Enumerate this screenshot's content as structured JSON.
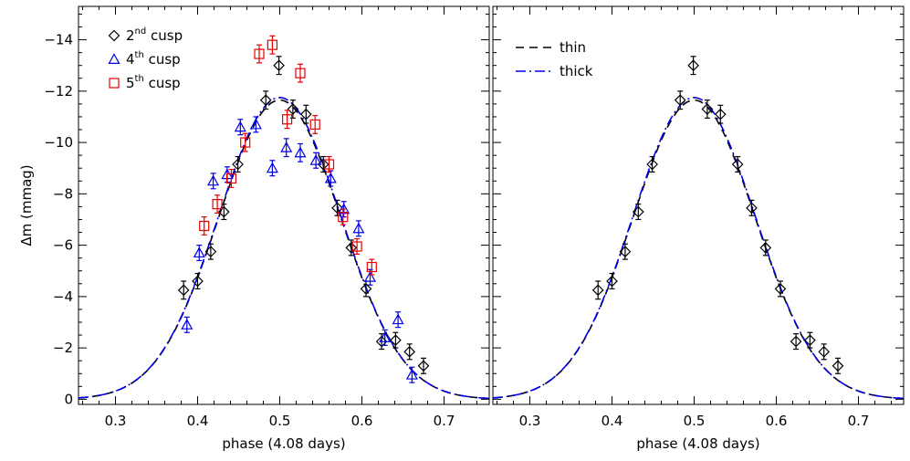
{
  "chart_data": [
    {
      "type": "scatter",
      "panel": "left",
      "xlabel": "phase (4.08 days)",
      "ylabel": "Δm (mmag)",
      "xlim": [
        0.255,
        0.755
      ],
      "ylim": [
        0.2,
        -15.3
      ],
      "x_ticks": [
        0.3,
        0.4,
        0.5,
        0.6,
        0.7
      ],
      "x_tick_labels": [
        "0.3",
        "0.4",
        "0.5",
        "0.6",
        "0.7"
      ],
      "y_ticks": [
        0,
        -2,
        -4,
        -6,
        -8,
        -10,
        -12,
        -14
      ],
      "y_tick_labels": [
        "0",
        "−2",
        "−4",
        "−6",
        "−8",
        "−10",
        "−12",
        "−14"
      ],
      "legend_position": "top-left",
      "series": [
        {
          "name": "2nd cusp",
          "legend_base": "2",
          "legend_sup": "nd",
          "legend_rest": " cusp",
          "marker": "diamond",
          "color": "#000000",
          "points": [
            [
              0.383,
              -4.25,
              0.35
            ],
            [
              0.4,
              -4.6,
              0.3
            ],
            [
              0.416,
              -5.75,
              0.3
            ],
            [
              0.432,
              -7.3,
              0.3
            ],
            [
              0.449,
              -9.15,
              0.3
            ],
            [
              0.483,
              -11.65,
              0.35
            ],
            [
              0.499,
              -13.0,
              0.35
            ],
            [
              0.516,
              -11.3,
              0.35
            ],
            [
              0.532,
              -11.1,
              0.35
            ],
            [
              0.553,
              -9.15,
              0.3
            ],
            [
              0.57,
              -7.45,
              0.3
            ],
            [
              0.587,
              -5.9,
              0.3
            ],
            [
              0.605,
              -4.3,
              0.3
            ],
            [
              0.624,
              -2.25,
              0.3
            ],
            [
              0.641,
              -2.3,
              0.3
            ],
            [
              0.658,
              -1.85,
              0.3
            ],
            [
              0.675,
              -1.3,
              0.3
            ]
          ]
        },
        {
          "name": "4th cusp",
          "legend_base": "4",
          "legend_sup": "th",
          "legend_rest": " cusp",
          "marker": "triangle",
          "color": "#0000e6",
          "points": [
            [
              0.387,
              -2.9,
              0.3
            ],
            [
              0.402,
              -5.7,
              0.3
            ],
            [
              0.419,
              -8.5,
              0.3
            ],
            [
              0.436,
              -8.75,
              0.3
            ],
            [
              0.452,
              -10.6,
              0.3
            ],
            [
              0.471,
              -10.7,
              0.3
            ],
            [
              0.491,
              -9.0,
              0.3
            ],
            [
              0.508,
              -9.8,
              0.35
            ],
            [
              0.525,
              -9.6,
              0.35
            ],
            [
              0.544,
              -9.3,
              0.3
            ],
            [
              0.562,
              -8.6,
              0.3
            ],
            [
              0.578,
              -7.4,
              0.3
            ],
            [
              0.596,
              -6.65,
              0.3
            ],
            [
              0.61,
              -4.75,
              0.3
            ],
            [
              0.628,
              -2.4,
              0.3
            ],
            [
              0.644,
              -3.1,
              0.3
            ],
            [
              0.661,
              -0.95,
              0.3
            ]
          ]
        },
        {
          "name": "5th cusp",
          "legend_base": "5",
          "legend_sup": "th",
          "legend_rest": " cusp",
          "marker": "square",
          "color": "#e60000",
          "points": [
            [
              0.408,
              -6.75,
              0.35
            ],
            [
              0.424,
              -7.6,
              0.35
            ],
            [
              0.441,
              -8.6,
              0.35
            ],
            [
              0.458,
              -10.0,
              0.35
            ],
            [
              0.475,
              -13.45,
              0.35
            ],
            [
              0.491,
              -13.8,
              0.35
            ],
            [
              0.509,
              -10.9,
              0.35
            ],
            [
              0.525,
              -12.7,
              0.35
            ],
            [
              0.543,
              -10.7,
              0.35
            ],
            [
              0.56,
              -9.15,
              0.3
            ],
            [
              0.577,
              -7.1,
              0.3
            ],
            [
              0.594,
              -5.95,
              0.3
            ],
            [
              0.612,
              -5.15,
              0.3
            ]
          ]
        }
      ],
      "models": [
        {
          "style": "dash",
          "color": "#000000",
          "center": 0.5,
          "peak": -11.65,
          "sigma": 0.0745
        },
        {
          "style": "dashdot",
          "color": "#0000e6",
          "center": 0.5,
          "peak": -11.75,
          "sigma": 0.0745
        }
      ]
    },
    {
      "type": "scatter",
      "panel": "right",
      "xlabel": "phase (4.08 days)",
      "ylabel": "",
      "xlim": [
        0.255,
        0.755
      ],
      "ylim": [
        0.2,
        -15.3
      ],
      "x_ticks": [
        0.3,
        0.4,
        0.5,
        0.6,
        0.7
      ],
      "x_tick_labels": [
        "0.3",
        "0.4",
        "0.5",
        "0.6",
        "0.7"
      ],
      "legend_position": "top-left",
      "series": [
        {
          "name": "2nd cusp",
          "marker": "diamond",
          "color": "#000000",
          "points": [
            [
              0.383,
              -4.25,
              0.35
            ],
            [
              0.4,
              -4.6,
              0.3
            ],
            [
              0.416,
              -5.75,
              0.3
            ],
            [
              0.432,
              -7.3,
              0.3
            ],
            [
              0.449,
              -9.15,
              0.3
            ],
            [
              0.483,
              -11.65,
              0.35
            ],
            [
              0.499,
              -13.0,
              0.35
            ],
            [
              0.516,
              -11.3,
              0.35
            ],
            [
              0.532,
              -11.1,
              0.35
            ],
            [
              0.553,
              -9.15,
              0.3
            ],
            [
              0.57,
              -7.45,
              0.3
            ],
            [
              0.587,
              -5.9,
              0.3
            ],
            [
              0.605,
              -4.3,
              0.3
            ],
            [
              0.624,
              -2.25,
              0.3
            ],
            [
              0.641,
              -2.3,
              0.3
            ],
            [
              0.658,
              -1.85,
              0.3
            ],
            [
              0.675,
              -1.3,
              0.3
            ]
          ]
        }
      ],
      "models": [
        {
          "name": "thin",
          "style": "dash",
          "color": "#000000",
          "center": 0.5,
          "peak": -11.65,
          "sigma": 0.0745
        },
        {
          "name": "thick",
          "style": "dashdot",
          "color": "#0000e6",
          "center": 0.5,
          "peak": -11.75,
          "sigma": 0.0745
        }
      ]
    }
  ]
}
